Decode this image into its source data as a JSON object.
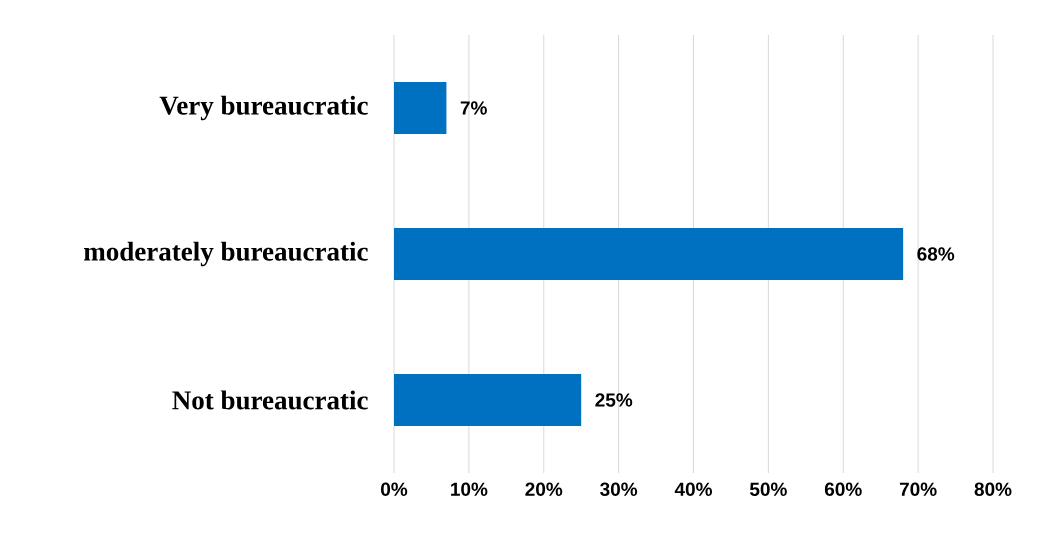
{
  "chart_data": {
    "type": "bar",
    "orientation": "horizontal",
    "categories": [
      "Very bureaucratic",
      "moderately bureaucratic",
      "Not bureaucratic"
    ],
    "values": [
      7,
      68,
      25
    ],
    "value_labels": [
      "7%",
      "68%",
      "25%"
    ],
    "color": "#0070c0",
    "xlim": [
      0,
      80
    ],
    "xticks": [
      {
        "value": 0,
        "label": "0%"
      },
      {
        "value": 10,
        "label": "10%"
      },
      {
        "value": 20,
        "label": "20%"
      },
      {
        "value": 30,
        "label": "30%"
      },
      {
        "value": 40,
        "label": "40%"
      },
      {
        "value": 50,
        "label": "50%"
      },
      {
        "value": 60,
        "label": "60%"
      },
      {
        "value": 70,
        "label": "70%"
      },
      {
        "value": 80,
        "label": "80%"
      }
    ],
    "grid": "x"
  }
}
